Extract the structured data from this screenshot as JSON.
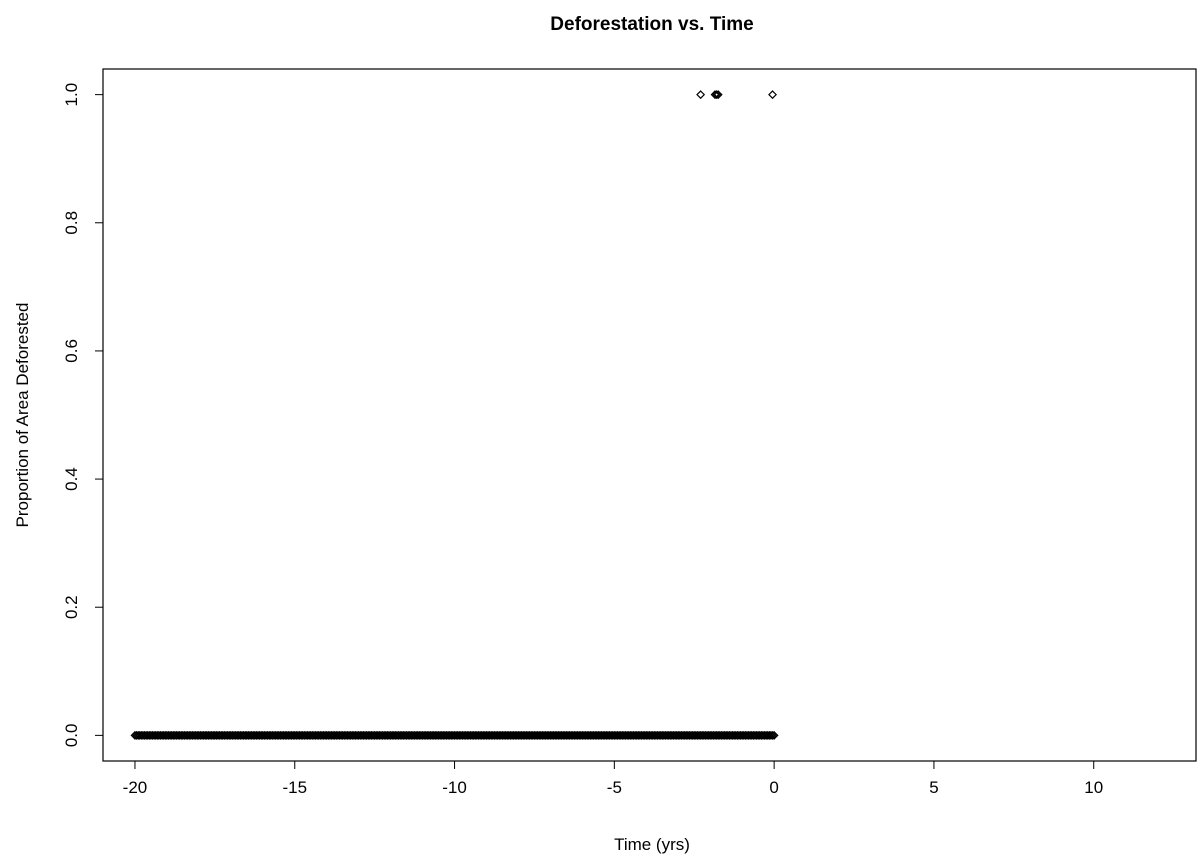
{
  "chart_data": {
    "type": "scatter",
    "title": "Deforestation vs. Time",
    "xlabel": "Time (yrs)",
    "ylabel": "Proportion of Area Deforested",
    "xlim": [
      -21,
      13.2
    ],
    "ylim": [
      -0.04,
      1.04
    ],
    "x_ticks": [
      -20,
      -15,
      -10,
      -5,
      0,
      5,
      10
    ],
    "x_tick_labels": [
      "-20",
      "-15",
      "-10",
      "-5",
      "0",
      "5",
      "10"
    ],
    "y_ticks": [
      0.0,
      0.2,
      0.4,
      0.6,
      0.8,
      1.0
    ],
    "y_tick_labels": [
      "0.0",
      "0.2",
      "0.4",
      "0.6",
      "0.8",
      "1.0"
    ],
    "marker": "open-diamond",
    "grid": false,
    "legend": "none",
    "series": [
      {
        "points_generated": {
          "x_start": -20,
          "x_end": 0,
          "x_step": 0.05,
          "y": 0
        },
        "points": [
          {
            "x": -2.3,
            "y": 1
          },
          {
            "x": -1.85,
            "y": 1
          },
          {
            "x": -1.8,
            "y": 1
          },
          {
            "x": -1.75,
            "y": 1
          },
          {
            "x": -0.05,
            "y": 1
          }
        ]
      }
    ]
  }
}
